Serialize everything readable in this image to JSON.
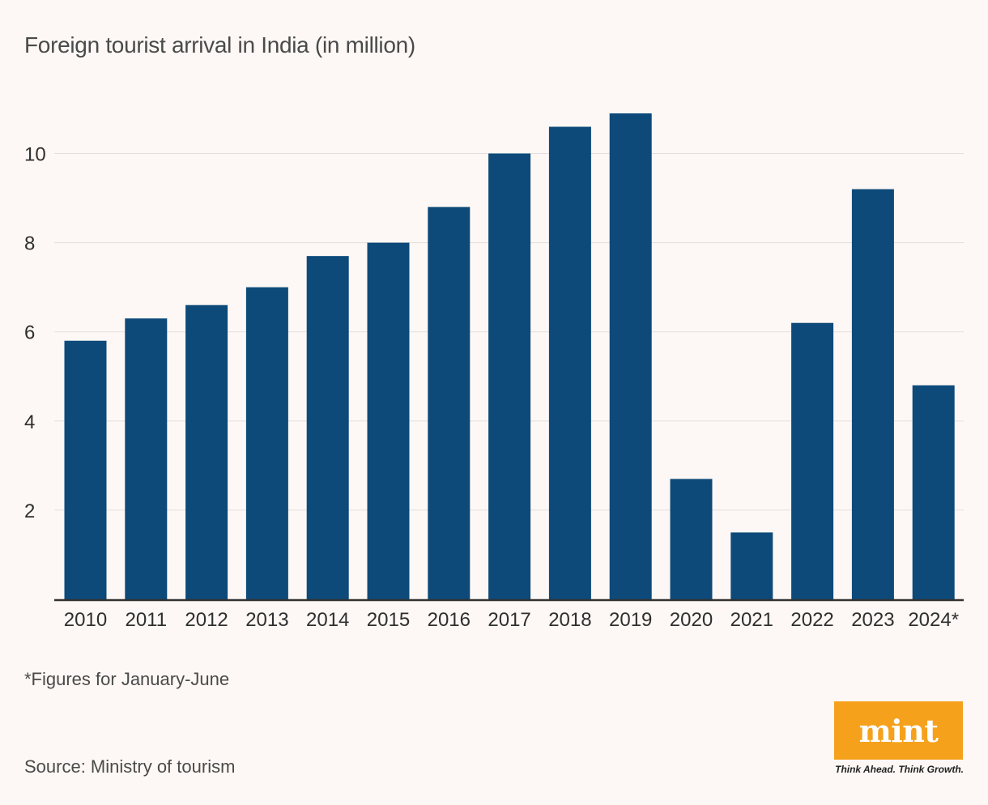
{
  "title": "Foreign tourist arrival in India (in million)",
  "note": "*Figures for January-June",
  "source": "Source: Ministry of tourism",
  "logo": {
    "text": "mint",
    "tagline": "Think Ahead. Think Growth."
  },
  "colors": {
    "bar": "#0d4a7a",
    "grid": "#e3dedb",
    "axis": "#333333",
    "logo": "#f5a11c",
    "background": "#fdf8f5"
  },
  "chart_data": {
    "type": "bar",
    "title": "Foreign tourist arrival in India (in million)",
    "xlabel": "",
    "ylabel": "",
    "categories": [
      "2010",
      "2011",
      "2012",
      "2013",
      "2014",
      "2015",
      "2016",
      "2017",
      "2018",
      "2019",
      "2020",
      "2021",
      "2022",
      "2023",
      "2024*"
    ],
    "values": [
      5.8,
      6.3,
      6.6,
      7.0,
      7.7,
      8.0,
      8.8,
      10.0,
      10.6,
      10.9,
      2.7,
      1.5,
      6.2,
      9.2,
      4.8
    ],
    "yticks": [
      2,
      4,
      6,
      8,
      10
    ],
    "ylim": [
      0,
      10.9
    ],
    "grid": true
  }
}
